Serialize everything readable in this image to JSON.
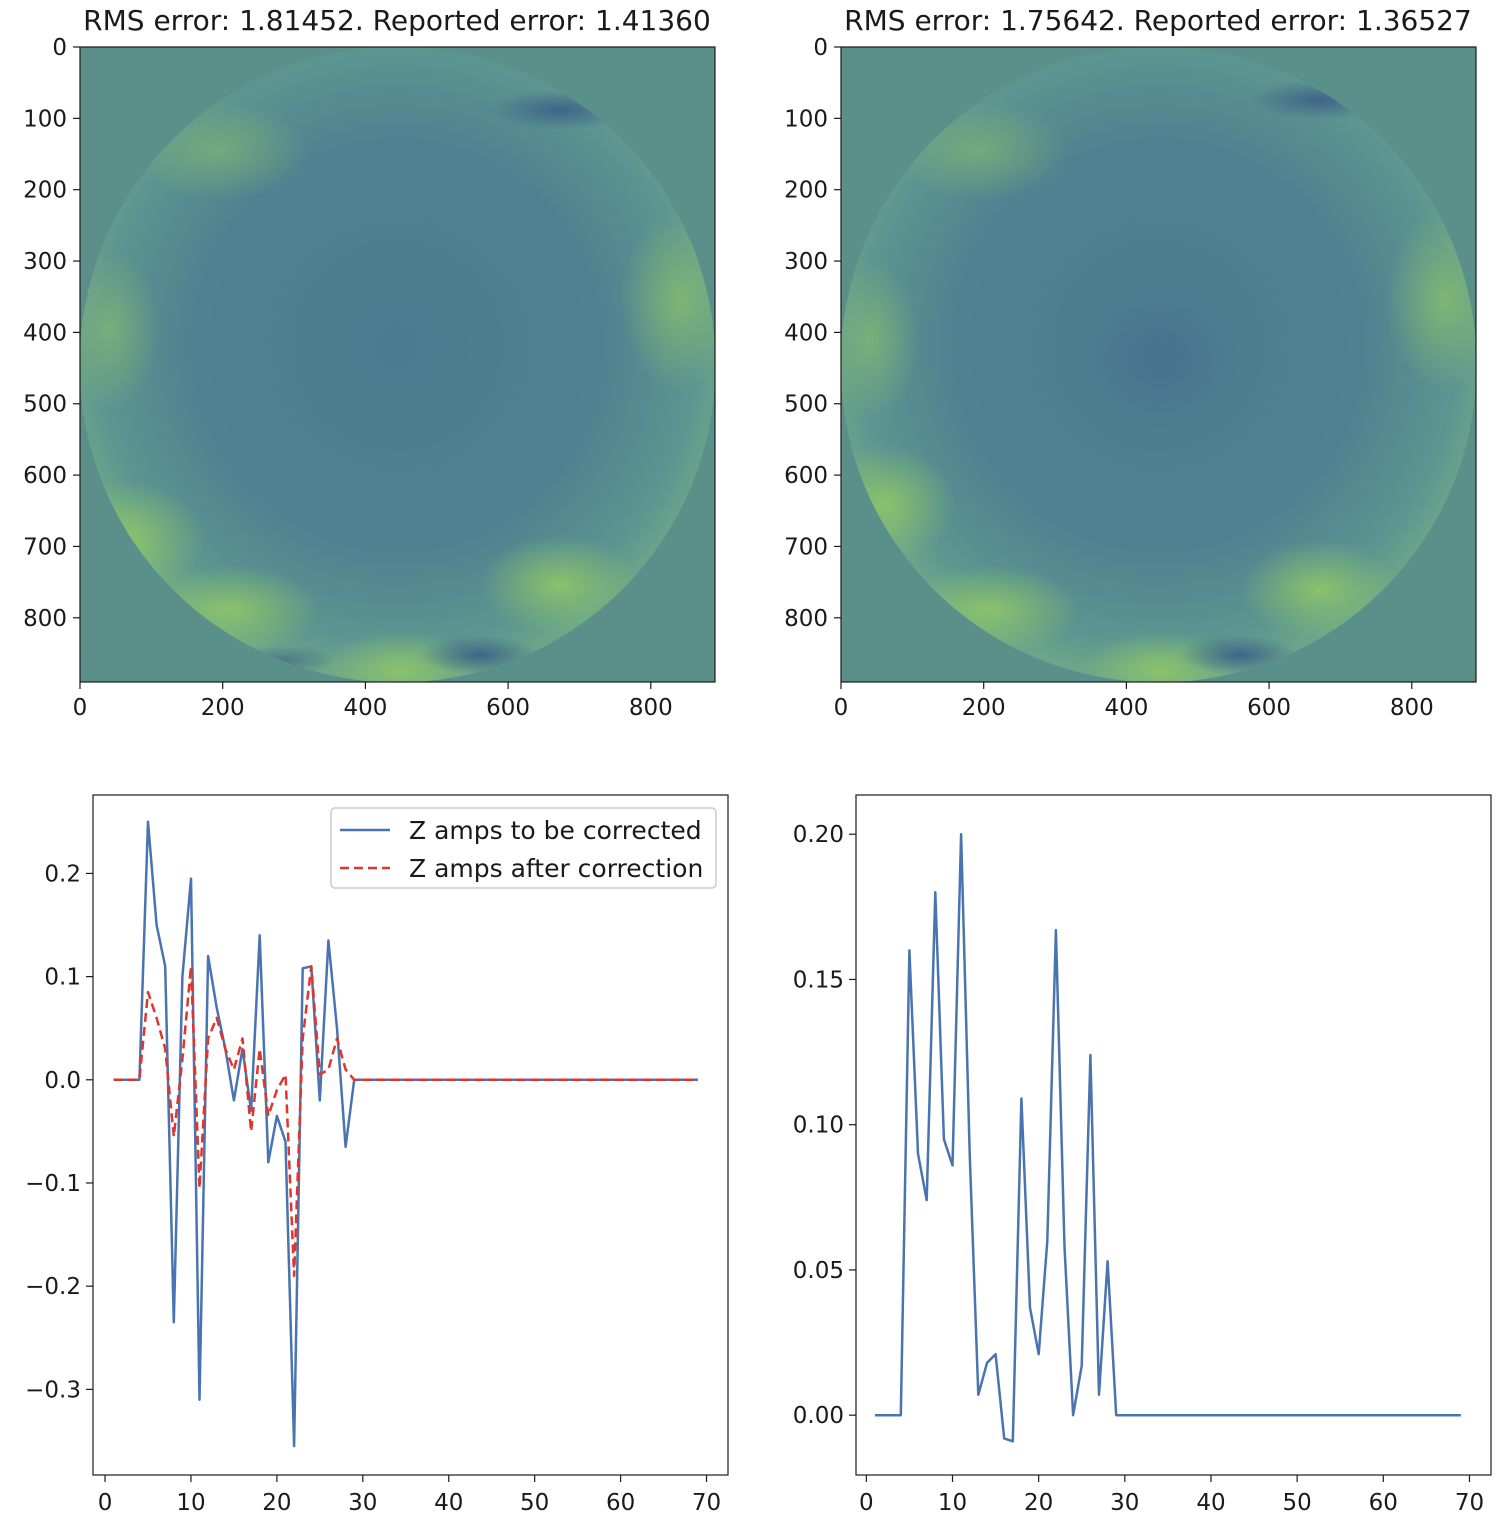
{
  "colors": {
    "map_field": "#5a8f8a",
    "map_center": "#4a7b8f",
    "map_bright": "#84c06a",
    "map_dark_edge": "#3d6585",
    "line_blue": "#4a74b0",
    "line_red": "#e0352b",
    "axis": "#1a1a1a"
  },
  "chart_data": [
    {
      "type": "heatmap",
      "title": "RMS error: 1.81452. Reported error: 1.41360",
      "x_ticks": [
        0,
        200,
        400,
        600,
        800
      ],
      "y_ticks": [
        0,
        100,
        200,
        300,
        400,
        500,
        600,
        700,
        800
      ],
      "xlim": [
        0,
        890
      ],
      "ylim": [
        890,
        0
      ],
      "y_inverted": true,
      "colormap": "viridis-like"
    },
    {
      "type": "heatmap",
      "title": "RMS error: 1.75642. Reported error: 1.36527",
      "x_ticks": [
        0,
        200,
        400,
        600,
        800
      ],
      "y_ticks": [
        0,
        100,
        200,
        300,
        400,
        500,
        600,
        700,
        800
      ],
      "xlim": [
        0,
        890
      ],
      "ylim": [
        890,
        0
      ],
      "y_inverted": true,
      "colormap": "viridis-like"
    },
    {
      "type": "line",
      "xlim": [
        -1.4,
        72.5
      ],
      "ylim": [
        -0.383,
        0.276
      ],
      "x_ticks": [
        0,
        10,
        20,
        30,
        40,
        50,
        60,
        70
      ],
      "y_ticks": [
        -0.3,
        -0.2,
        -0.1,
        0.0,
        0.1,
        0.2
      ],
      "y_tick_labels": [
        "−0.3",
        "−0.2",
        "−0.1",
        "0.0",
        "0.1",
        "0.2"
      ],
      "legend": "top-right",
      "series": [
        {
          "name": "Z amps to be corrected",
          "style": "solid",
          "color": "#4a74b0",
          "x": [
            1,
            2,
            3,
            4,
            5,
            6,
            7,
            8,
            9,
            10,
            11,
            12,
            13,
            14,
            15,
            16,
            17,
            18,
            19,
            20,
            21,
            22,
            23,
            24,
            25,
            26,
            27,
            28,
            29,
            30,
            69
          ],
          "y": [
            0,
            0,
            0,
            0,
            0.25,
            0.15,
            0.11,
            -0.235,
            0.1,
            0.195,
            -0.31,
            0.12,
            0.07,
            0.03,
            -0.02,
            0.03,
            -0.03,
            0.14,
            -0.08,
            -0.035,
            -0.06,
            -0.355,
            0.108,
            0.11,
            -0.02,
            0.135,
            0.05,
            -0.065,
            0,
            0,
            0
          ]
        },
        {
          "name": "Z amps after correction",
          "style": "dashed",
          "color": "#e0352b",
          "x": [
            1,
            2,
            3,
            4,
            5,
            6,
            7,
            8,
            9,
            10,
            11,
            12,
            13,
            14,
            15,
            16,
            17,
            18,
            19,
            20,
            21,
            22,
            23,
            24,
            25,
            26,
            27,
            28,
            29,
            30,
            69
          ],
          "y": [
            0,
            0,
            0,
            0,
            0.085,
            0.06,
            0.03,
            -0.055,
            0.02,
            0.11,
            -0.105,
            0.04,
            0.06,
            0.03,
            0.01,
            0.04,
            -0.05,
            0.03,
            -0.035,
            -0.01,
            0.005,
            -0.19,
            0.04,
            0.11,
            0.005,
            0.01,
            0.04,
            0.01,
            0,
            0,
            0
          ]
        }
      ]
    },
    {
      "type": "line",
      "xlim": [
        -1.2,
        72.5
      ],
      "ylim": [
        -0.0206,
        0.2135
      ],
      "x_ticks": [
        0,
        10,
        20,
        30,
        40,
        50,
        60,
        70
      ],
      "y_ticks": [
        0.0,
        0.05,
        0.1,
        0.15,
        0.2
      ],
      "y_tick_labels": [
        "0.00",
        "0.05",
        "0.10",
        "0.15",
        "0.20"
      ],
      "series": [
        {
          "style": "solid",
          "color": "#4a74b0",
          "x": [
            1,
            2,
            3,
            4,
            5,
            6,
            7,
            8,
            9,
            10,
            11,
            12,
            13,
            14,
            15,
            16,
            17,
            18,
            19,
            20,
            21,
            22,
            23,
            24,
            25,
            26,
            27,
            28,
            29,
            30,
            69
          ],
          "y": [
            0,
            0,
            0,
            0,
            0.16,
            0.09,
            0.074,
            0.18,
            0.095,
            0.086,
            0.2,
            0.09,
            0.007,
            0.018,
            0.021,
            -0.008,
            -0.009,
            0.109,
            0.037,
            0.021,
            0.06,
            0.167,
            0.058,
            0,
            0.017,
            0.124,
            0.007,
            0.053,
            0,
            0,
            0
          ]
        }
      ]
    }
  ]
}
